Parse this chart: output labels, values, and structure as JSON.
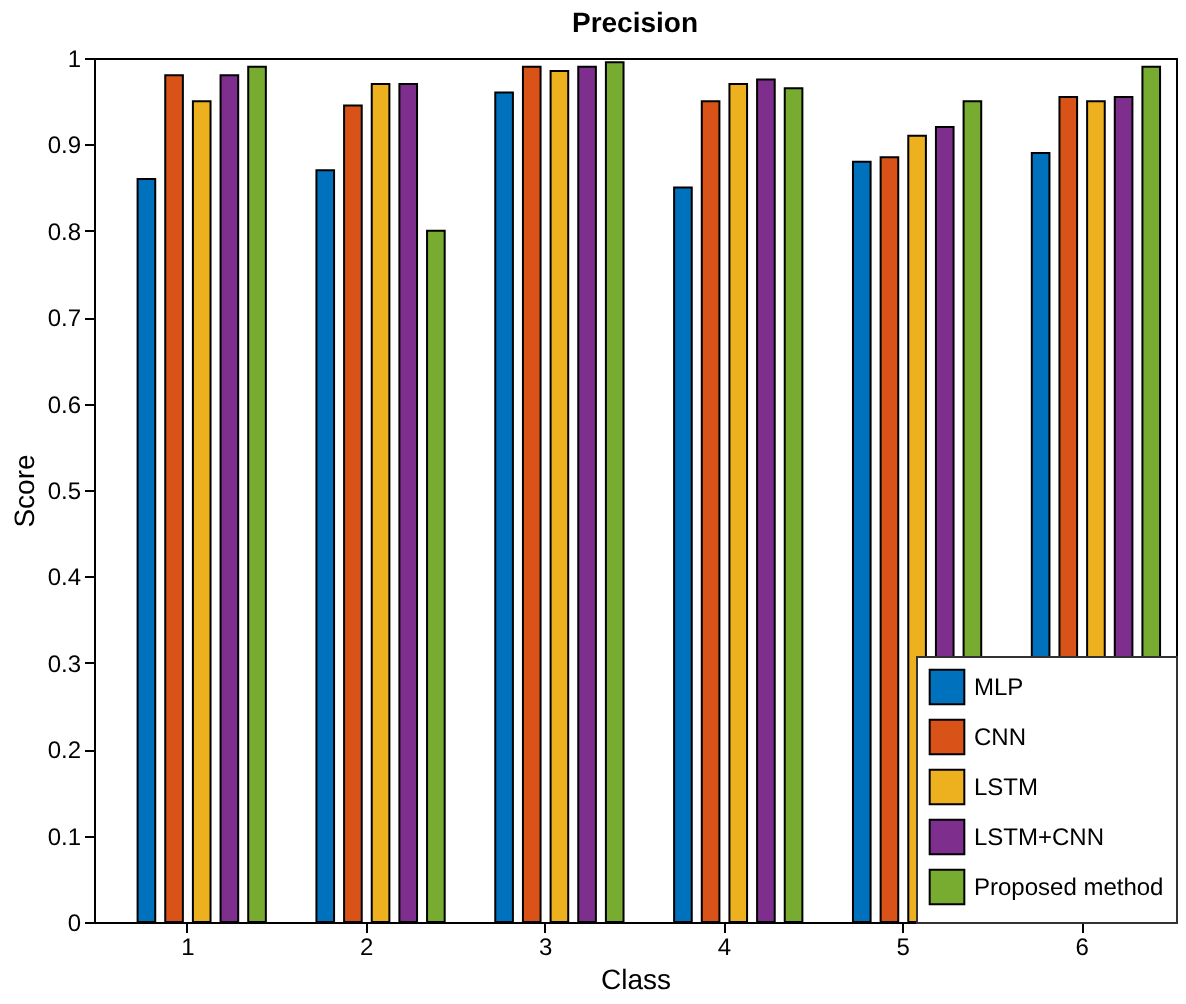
{
  "chart_data": {
    "type": "bar",
    "title": "Precision",
    "xlabel": "Class",
    "ylabel": "Score",
    "categories": [
      "1",
      "2",
      "3",
      "4",
      "5",
      "6"
    ],
    "series": [
      {
        "name": "MLP",
        "color": "#0072bd",
        "values": [
          0.86,
          0.87,
          0.96,
          0.85,
          0.88,
          0.89
        ]
      },
      {
        "name": "CNN",
        "color": "#d95319",
        "values": [
          0.98,
          0.945,
          0.99,
          0.95,
          0.885,
          0.955
        ]
      },
      {
        "name": "LSTM",
        "color": "#edb120",
        "values": [
          0.95,
          0.97,
          0.985,
          0.97,
          0.91,
          0.95
        ]
      },
      {
        "name": "LSTM+CNN",
        "color": "#7e2f8e",
        "values": [
          0.98,
          0.97,
          0.99,
          0.975,
          0.92,
          0.955
        ]
      },
      {
        "name": "Proposed method",
        "color": "#77ac30",
        "values": [
          0.99,
          0.8,
          0.995,
          0.965,
          0.95,
          0.99
        ]
      }
    ],
    "ylim": [
      0,
      1
    ],
    "yticks": [
      0,
      0.1,
      0.2,
      0.3,
      0.4,
      0.5,
      0.6,
      0.7,
      0.8,
      0.9,
      1
    ],
    "grid": false,
    "legend": "bottom right"
  }
}
